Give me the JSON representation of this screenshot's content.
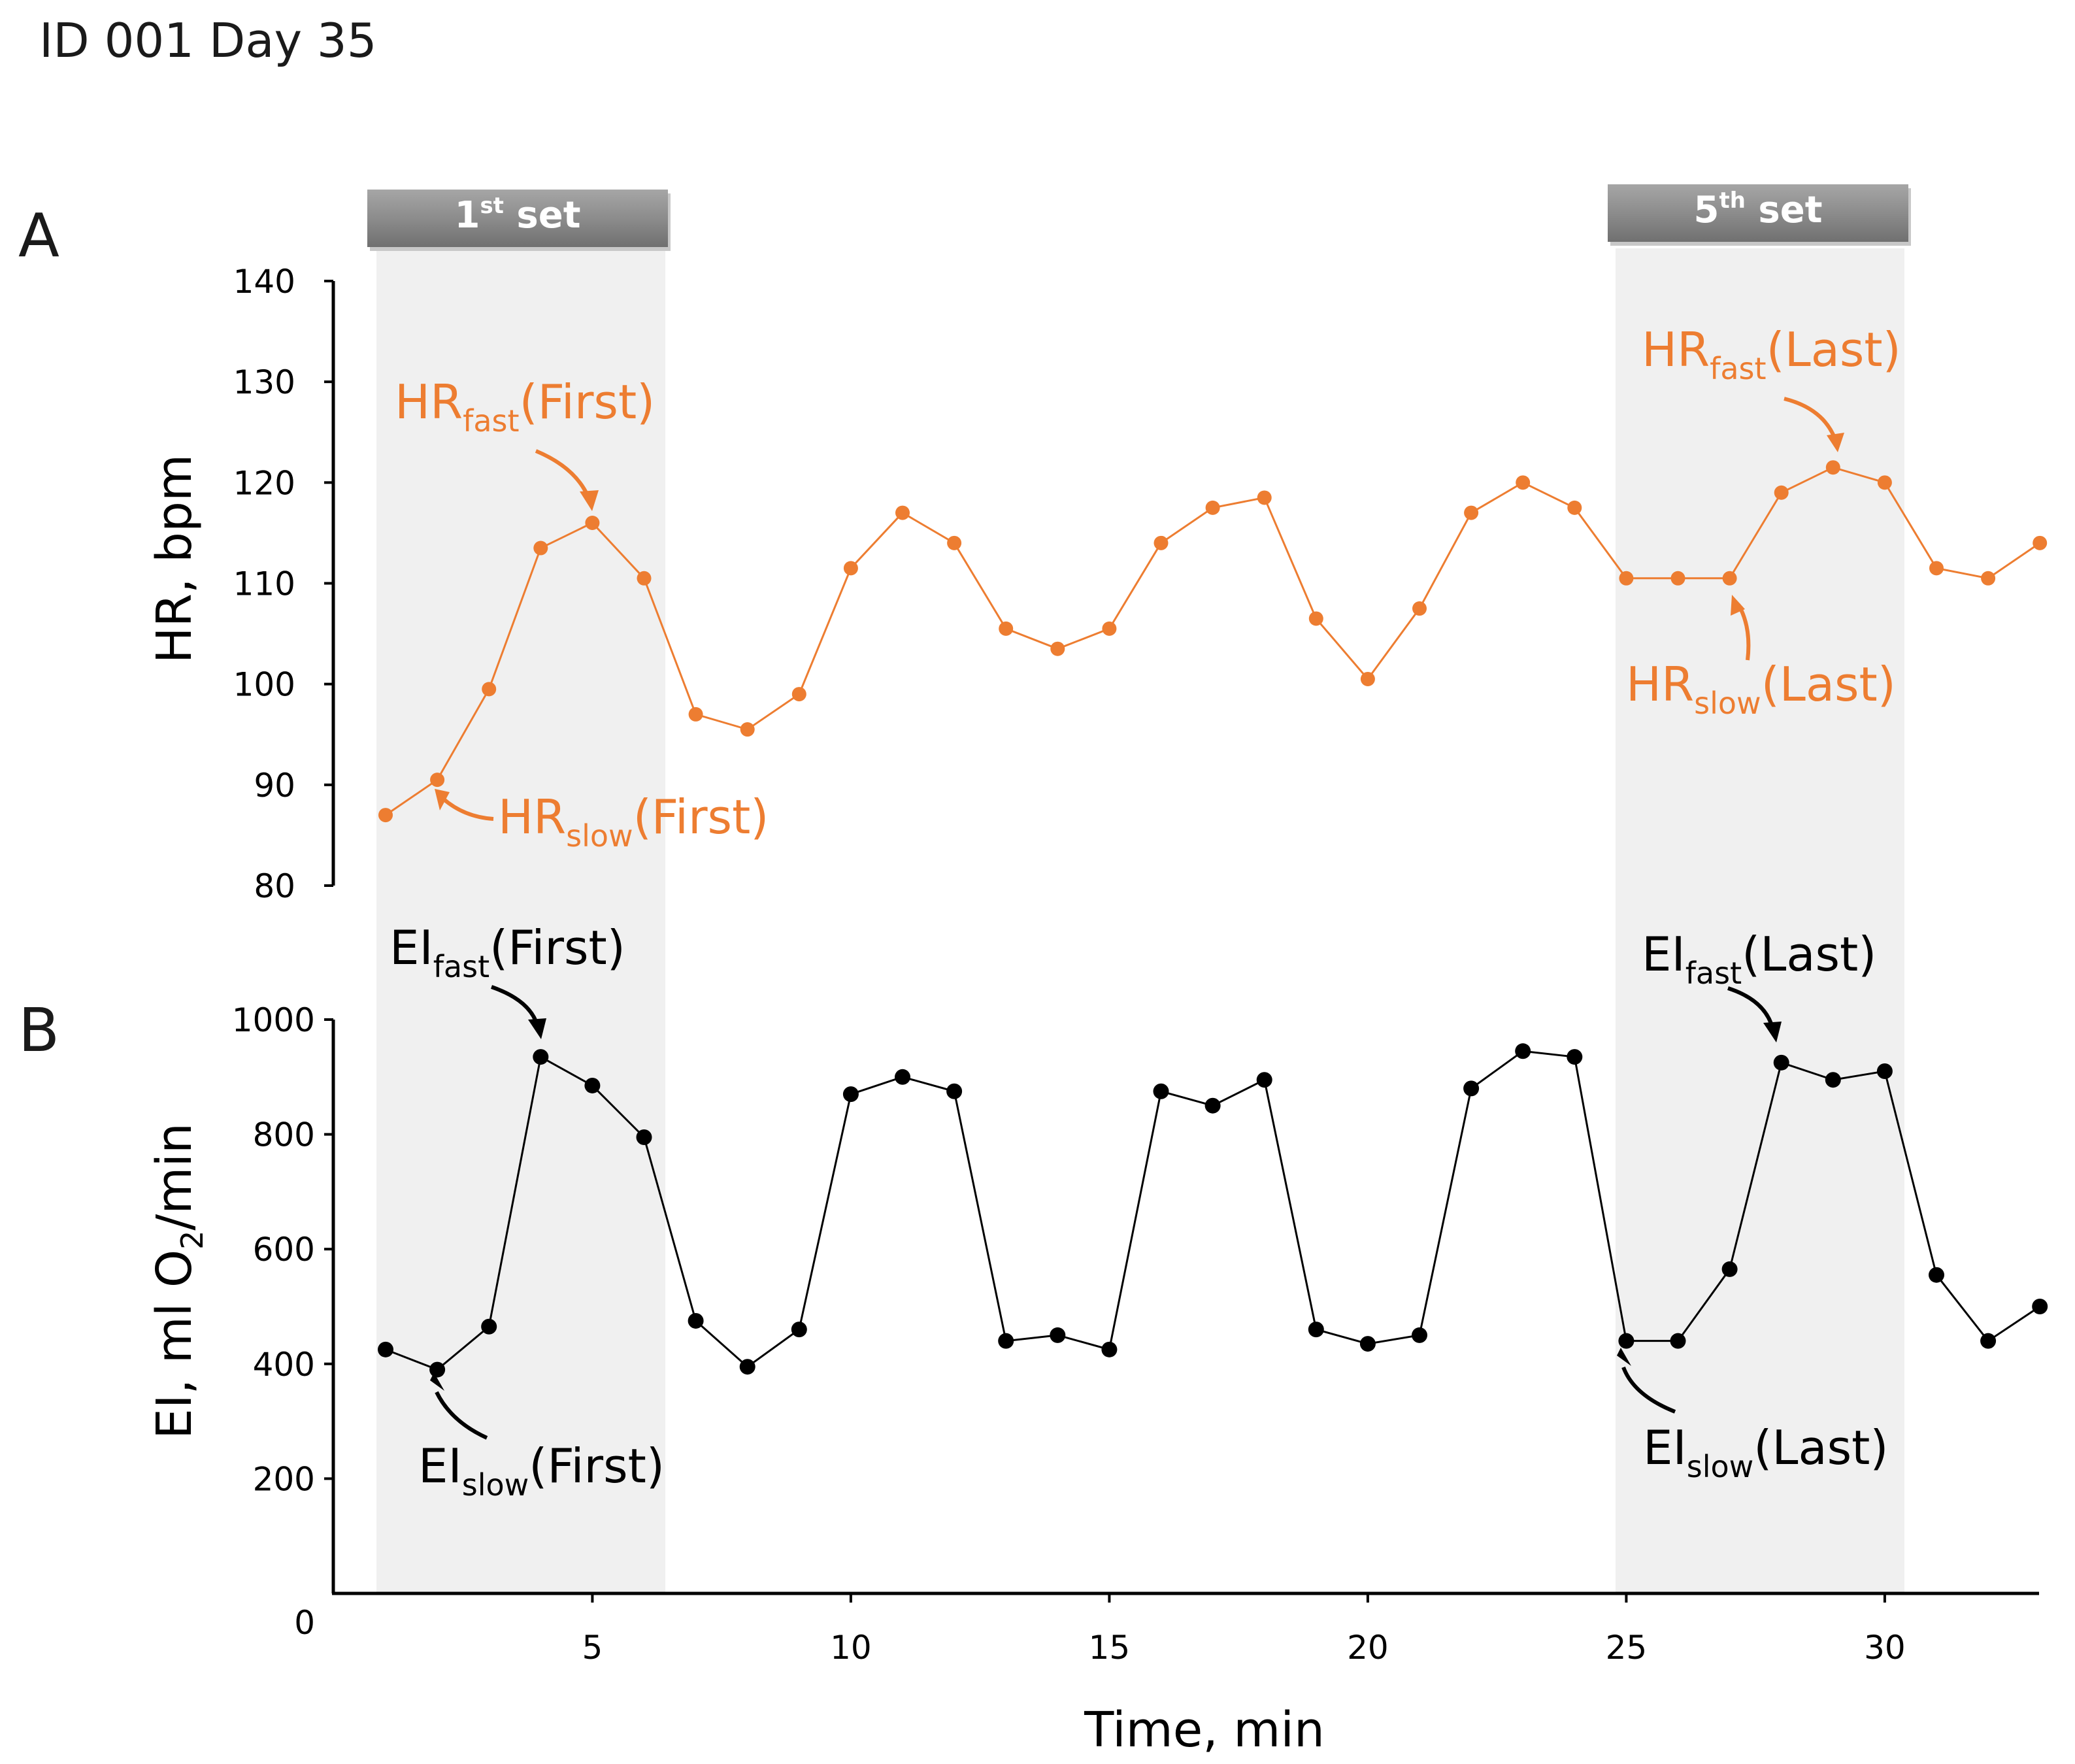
{
  "figure_title": "ID 001 Day 35",
  "colors": {
    "hr": "#ED7D31",
    "ei": "#000000",
    "shade": "#F0F0F0",
    "banner": "#8C8C8C"
  },
  "banners": [
    {
      "main": "1",
      "sup": "st",
      "tail": " set"
    },
    {
      "main": "5",
      "sup": "th",
      "tail": " set"
    }
  ],
  "chart_data": [
    {
      "type": "line",
      "panel": "A",
      "ylabel": "HR, bpm",
      "ylim": [
        80,
        140
      ],
      "yticks": [
        80,
        90,
        100,
        110,
        120,
        130,
        140
      ],
      "x": [
        1,
        2,
        3,
        4,
        5,
        6,
        7,
        8,
        9,
        10,
        11,
        12,
        13,
        14,
        15,
        16,
        17,
        18,
        19,
        20,
        21,
        22,
        23,
        24,
        25,
        26,
        27,
        28,
        29,
        30,
        31,
        32,
        33
      ],
      "series": [
        {
          "name": "HR",
          "values": [
            87,
            90.5,
            99.5,
            113.5,
            116,
            110.5,
            97,
            95.5,
            99,
            111.5,
            117,
            114,
            105.5,
            103.5,
            105.5,
            114,
            117.5,
            118.5,
            106.5,
            100.5,
            107.5,
            117,
            120,
            117.5,
            110.5,
            110.5,
            110.5,
            119,
            121.5,
            120,
            111.5,
            110.5,
            114
          ]
        }
      ],
      "annotations": [
        {
          "base": "HR",
          "sub": "fast",
          "tail": "(First)"
        },
        {
          "base": "HR",
          "sub": "slow",
          "tail": "(First)"
        },
        {
          "base": "HR",
          "sub": "fast",
          "tail": "(Last)"
        },
        {
          "base": "HR",
          "sub": "slow",
          "tail": "(Last)"
        }
      ]
    },
    {
      "type": "line",
      "panel": "B",
      "ylabel_pre": "EI, ml O",
      "ylabel_sub": "2",
      "ylabel_post": "/min",
      "ylim": [
        0,
        1000
      ],
      "yticks": [
        0,
        200,
        400,
        600,
        800,
        1000
      ],
      "xlabel": "Time, min",
      "xticks": [
        5,
        10,
        15,
        20,
        25,
        30
      ],
      "x": [
        1,
        2,
        3,
        4,
        5,
        6,
        7,
        8,
        9,
        10,
        11,
        12,
        13,
        14,
        15,
        16,
        17,
        18,
        19,
        20,
        21,
        22,
        23,
        24,
        25,
        26,
        27,
        28,
        29,
        30,
        31,
        32,
        33
      ],
      "series": [
        {
          "name": "EI",
          "values": [
            425,
            390,
            465,
            935,
            885,
            795,
            475,
            395,
            460,
            870,
            900,
            875,
            440,
            450,
            425,
            875,
            850,
            895,
            460,
            435,
            450,
            880,
            945,
            935,
            440,
            440,
            565,
            925,
            895,
            910,
            555,
            440,
            500
          ]
        }
      ],
      "annotations": [
        {
          "base": "EI",
          "sub": "fast",
          "tail": "(First)"
        },
        {
          "base": "EI",
          "sub": "slow",
          "tail": "(First)"
        },
        {
          "base": "EI",
          "sub": "fast",
          "tail": "(Last)"
        },
        {
          "base": "EI",
          "sub": "slow",
          "tail": "(Last)"
        }
      ]
    }
  ]
}
